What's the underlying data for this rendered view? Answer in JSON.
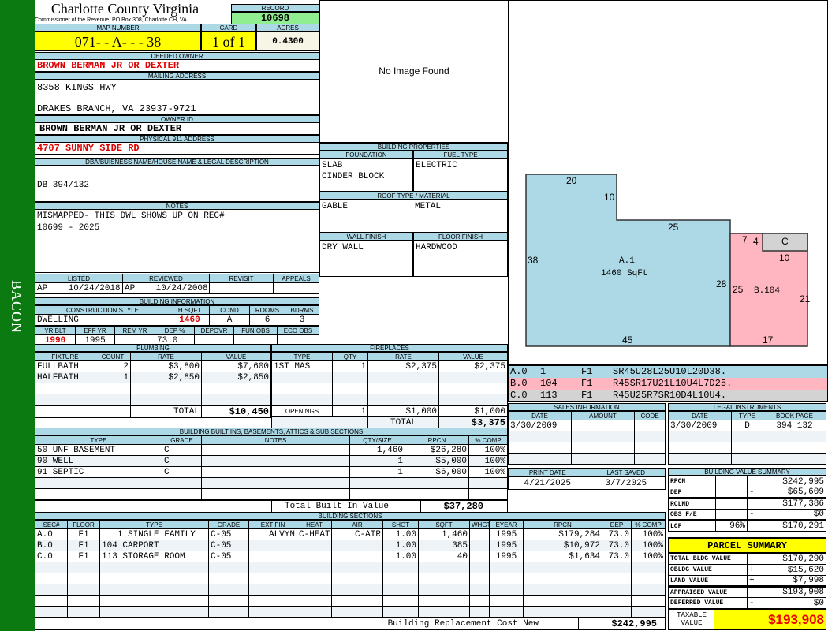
{
  "side_label": "BACON",
  "header": {
    "title": "Charlotte County Virginia",
    "subtitle": "Commissioner of the Revenue, PO Box 308, Charlotte CH, VA",
    "record_label": "RECORD",
    "record": "10698",
    "map_label": "MAP NUMBER",
    "map": "071- - A- - - 38",
    "card_label": "CARD",
    "card": "1 of 1",
    "acres_label": "ACRES",
    "acres": "0.4300"
  },
  "owner": {
    "deeded_label": "DEEDED OWNER",
    "deeded": "BROWN BERMAN JR OR DEXTER",
    "mailing_label": "MAILING ADDRESS",
    "mail1": "8358 KINGS HWY",
    "mail2": "DRAKES BRANCH, VA 23937-9721",
    "ownerid_label": "OWNER ID",
    "ownerid": "BROWN BERMAN JR OR DEXTER",
    "phys_label": "PHYSICAL 911 ADDRESS",
    "phys": "4707 SUNNY SIDE RD",
    "dba_label": "DBA/BUISNESS NAME/HOUSE NAME & LEGAL DESCRIPTION",
    "dba": "DB 394/132",
    "notes_label": "NOTES",
    "notes1": "MISMAPPED- THIS DWL SHOWS UP ON REC#",
    "notes2": "10699 - 2025"
  },
  "image": {
    "text": "No Image Found"
  },
  "props": {
    "title": "BUILDING PROPERTIES",
    "foundation_label": "FOUNDATION",
    "foundation1": "SLAB",
    "foundation2": "CINDER BLOCK",
    "fuel_label": "FUEL TYPE",
    "fuel": "ELECTRIC",
    "roof_label": "ROOF TYPE / MATERIAL",
    "roof_type": "GABLE",
    "roof_mat": "METAL",
    "wall_label": "WALL FINISH",
    "wall": "DRY WALL",
    "floor_label": "FLOOR FINISH",
    "floor": "HARDWOOD"
  },
  "dates": {
    "headers": [
      "LISTED",
      "REVIEWED",
      "REVISIT",
      "APPEALS"
    ],
    "listed": "AP    10/24/2018",
    "reviewed": "AP    10/24/2008",
    "revisit": "",
    "appeals": ""
  },
  "building": {
    "title": "BUILDING INFORMATION",
    "h1": [
      "CONSTRUCTION STYLE",
      "H SQFT",
      "COND",
      "ROOMS",
      "BDRMS"
    ],
    "style": "DWELLING",
    "hsqft": "1460",
    "cond": "A",
    "rooms": "6",
    "bdrms": "3",
    "h2": [
      "YR BLT",
      "EFF YR",
      "REM YR",
      "DEP %",
      "DEPOVR",
      "FUN OBS",
      "ECO OBS"
    ],
    "yrblt": "1990",
    "effyr": "1995",
    "remyr": "",
    "dep": "73.0",
    "depovr": "",
    "funobs": "",
    "ecoobs": ""
  },
  "plumbing": {
    "title": "PLUMBING",
    "headers": [
      "FIXTURE",
      "COUNT",
      "RATE",
      "VALUE"
    ],
    "rows": [
      [
        "FULLBATH",
        "2",
        "$3,800",
        "$7,600"
      ],
      [
        "HALFBATH",
        "1",
        "$2,850",
        "$2,850"
      ],
      [
        "",
        "",
        "",
        ""
      ],
      [
        "",
        "",
        "",
        ""
      ]
    ],
    "total_label": "TOTAL",
    "total": "$10,450"
  },
  "fireplaces": {
    "title": "FIREPLACES",
    "headers": [
      "TYPE",
      "QTY",
      "RATE",
      "VALUE"
    ],
    "rows": [
      [
        "1ST MAS",
        "1",
        "$2,375",
        "$2,375"
      ],
      [
        "",
        "",
        "",
        ""
      ],
      [
        "",
        "",
        "",
        ""
      ],
      [
        "",
        "",
        "",
        ""
      ]
    ],
    "openings_label": "OPENINGS",
    "openings_qty": "1",
    "openings_rate": "$1,000",
    "openings_value": "$1,000",
    "total_label": "TOTAL",
    "total": "$3,375"
  },
  "builtins": {
    "title": "BUILDING BUILT INS, BASEMENTS, ATTICS & SUB SECTIONS",
    "headers": [
      "TYPE",
      "GRADE",
      "NOTES",
      "QTY/SIZE",
      "RPCN",
      "% COMP"
    ],
    "rows": [
      [
        "50 UNF BASEMENT",
        "C",
        "",
        "1,460",
        "$26,280",
        "100%"
      ],
      [
        "90 WELL",
        "C",
        "",
        "1",
        "$5,000",
        "100%"
      ],
      [
        "91 SEPTIC",
        "C",
        "",
        "1",
        "$6,000",
        "100%"
      ],
      [
        "",
        "",
        "",
        "",
        "",
        ""
      ],
      [
        "",
        "",
        "",
        "",
        "",
        ""
      ]
    ],
    "total_label": "Total Built In Value",
    "total": "$37,280"
  },
  "sections": {
    "title": "BUILDING SECTIONS",
    "headers": [
      "SEC#",
      "FLOOR",
      "TYPE",
      "GRADE",
      "EXT FIN",
      "HEAT",
      "AIR",
      "SHGT",
      "SQFT",
      "WHGT",
      "EYEAR",
      "RPCN",
      "DEP",
      "% COMP"
    ],
    "rows": [
      [
        "A.0",
        "F1",
        "   1 SINGLE FAMILY",
        "C-05",
        "ALVYN",
        "C-HEAT",
        "C-AIR",
        "1.00",
        "1,460",
        "",
        "1995",
        "$179,284",
        "73.0",
        "100%"
      ],
      [
        "B.0",
        "F1",
        "104 CARPORT",
        "C-05",
        "",
        "",
        "",
        "1.00",
        "385",
        "",
        "1995",
        "$10,972",
        "73.0",
        "100%"
      ],
      [
        "C.0",
        "F1",
        "113 STORAGE ROOM",
        "C-05",
        "",
        "",
        "",
        "1.00",
        "40",
        "",
        "1995",
        "$1,634",
        "73.0",
        "100%"
      ],
      [
        "",
        "",
        "",
        "",
        "",
        "",
        "",
        "",
        "",
        "",
        "",
        "",
        "",
        ""
      ],
      [
        "",
        "",
        "",
        "",
        "",
        "",
        "",
        "",
        "",
        "",
        "",
        "",
        "",
        ""
      ],
      [
        "",
        "",
        "",
        "",
        "",
        "",
        "",
        "",
        "",
        "",
        "",
        "",
        "",
        ""
      ],
      [
        "",
        "",
        "",
        "",
        "",
        "",
        "",
        "",
        "",
        "",
        "",
        "",
        "",
        ""
      ],
      [
        "",
        "",
        "",
        "",
        "",
        "",
        "",
        "",
        "",
        "",
        "",
        "",
        "",
        ""
      ]
    ],
    "total_label": "Building Replacement Cost New",
    "total": "$242,995"
  },
  "sketch": {
    "colors": {
      "A": "#add8e6",
      "B": "#ffb6c1",
      "C": "#d3d3d3"
    },
    "labels": {
      "a_name": "A.1",
      "a_area": "1460 SqFt",
      "b_name": "B.104",
      "c_name": "C"
    },
    "dims": {
      "a_top": "20",
      "a_step": "10",
      "a_mid": "25",
      "a_left": "38",
      "a_right": "28",
      "a_bottom": "45",
      "b_left": "25",
      "b_right": "21",
      "b_bottom": "17",
      "b_top": "7",
      "c_left": "4",
      "c_bottom": "10"
    },
    "legend": [
      [
        "A.0",
        "1",
        "F1",
        "SR45U28L25U10L20D38."
      ],
      [
        "B.0",
        "104",
        "F1",
        "R45SR17U21L10U4L7D25."
      ],
      [
        "C.0",
        "113",
        "F1",
        "R45U25R7SR10D4L10U4."
      ]
    ]
  },
  "sales": {
    "title": "SALES INFORMATION",
    "headers": [
      "DATE",
      "AMOUNT",
      "CODE"
    ],
    "rows": [
      [
        "3/30/2009",
        "",
        ""
      ],
      [
        "",
        "",
        ""
      ],
      [
        "",
        "",
        ""
      ],
      [
        "",
        "",
        ""
      ]
    ]
  },
  "legal": {
    "title": "LEGAL INSTRUMENTS",
    "headers": [
      "DATE",
      "TYPE",
      "BOOK PAGE"
    ],
    "rows": [
      [
        "3/30/2009",
        "D",
        "394 132"
      ],
      [
        "",
        "",
        ""
      ],
      [
        "",
        "",
        ""
      ],
      [
        "",
        "",
        ""
      ]
    ]
  },
  "print": {
    "headers": [
      "PRINT DATE",
      "LAST SAVED"
    ],
    "print_date": "4/21/2025",
    "last_saved": "3/7/2025"
  },
  "bvs": {
    "title": "BUILDING VALUE SUMMARY",
    "rows": [
      [
        "RPCN",
        "",
        "",
        "$242,995"
      ],
      [
        "DEP",
        "",
        "-",
        "$65,609"
      ],
      [
        "RCLND",
        "",
        "",
        "$177,386"
      ],
      [
        "OBS F/E",
        "",
        "-",
        "$0"
      ],
      [
        "LCF",
        "96%",
        "",
        "$170,291"
      ]
    ]
  },
  "parcel": {
    "title": "PARCEL SUMMARY",
    "rows": [
      [
        "TOTAL BLDG VALUE",
        "",
        "$170,290"
      ],
      [
        "OBLDG VALUE",
        "+",
        "$15,620"
      ],
      [
        "LAND VALUE",
        "+",
        "$7,998"
      ],
      [
        "APPRAISED VALUE",
        "",
        "$193,908"
      ],
      [
        "DEFERRED VALUE",
        "-",
        "$0"
      ]
    ],
    "taxable_label": "TAXABLE VALUE",
    "taxable": "$193,908",
    "highlight": "#ffff00"
  }
}
